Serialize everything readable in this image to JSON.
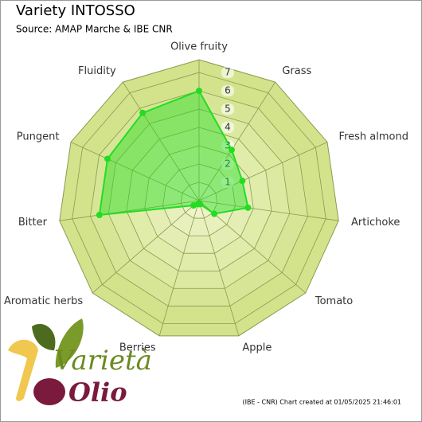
{
  "chart_data": {
    "type": "radar",
    "title": "Variety INTOSSO",
    "subtitle": "Source: AMAP Marche & IBE CNR",
    "categories": [
      "Olive fruity",
      "Grass",
      "Fresh almond",
      "Artichoke",
      "Tomato",
      "Apple",
      "Berries",
      "Aromatic herbs",
      "Bitter",
      "Pungent",
      "Fluidity"
    ],
    "series": [
      {
        "name": "INTOSSO",
        "color": "#22dd22",
        "values": [
          6.0,
          3.3,
          2.6,
          2.7,
          1.1,
          0.2,
          0.2,
          0.4,
          5.5,
          5.5,
          5.7
        ]
      }
    ],
    "ylim": [
      0,
      7.7
    ],
    "yticks": [
      1,
      2,
      3,
      4,
      5,
      6,
      7
    ],
    "grid": true,
    "footer": "(IBE - CNR) Chart created at 01/05/2025 21:46:01",
    "logo": {
      "line1": "Varietà",
      "line2": "Olio"
    }
  }
}
